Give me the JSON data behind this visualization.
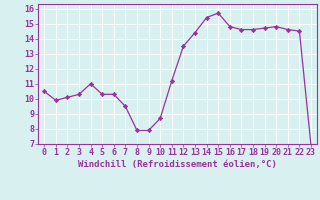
{
  "x": [
    0,
    1,
    2,
    3,
    4,
    5,
    6,
    7,
    8,
    9,
    10,
    11,
    12,
    13,
    14,
    15,
    16,
    17,
    18,
    19,
    20,
    21,
    22,
    23
  ],
  "y": [
    10.5,
    9.9,
    10.1,
    10.3,
    11.0,
    10.3,
    10.3,
    9.5,
    7.9,
    7.9,
    8.7,
    11.2,
    13.5,
    14.4,
    15.4,
    15.7,
    14.8,
    14.6,
    14.6,
    14.7,
    14.8,
    14.6,
    14.5,
    6.9
  ],
  "line_color": "#993399",
  "marker": "D",
  "marker_size": 2.2,
  "bg_color": "#d8f0f0",
  "grid_color": "#ffffff",
  "xlabel": "Windchill (Refroidissement éolien,°C)",
  "xlim": [
    -0.5,
    23.5
  ],
  "ylim": [
    7,
    16.3
  ],
  "yticks": [
    7,
    8,
    9,
    10,
    11,
    12,
    13,
    14,
    15,
    16
  ],
  "xticks": [
    0,
    1,
    2,
    3,
    4,
    5,
    6,
    7,
    8,
    9,
    10,
    11,
    12,
    13,
    14,
    15,
    16,
    17,
    18,
    19,
    20,
    21,
    22,
    23
  ],
  "xlabel_fontsize": 6.5,
  "tick_fontsize": 6.0,
  "label_color": "#993399",
  "spine_color": "#993399"
}
